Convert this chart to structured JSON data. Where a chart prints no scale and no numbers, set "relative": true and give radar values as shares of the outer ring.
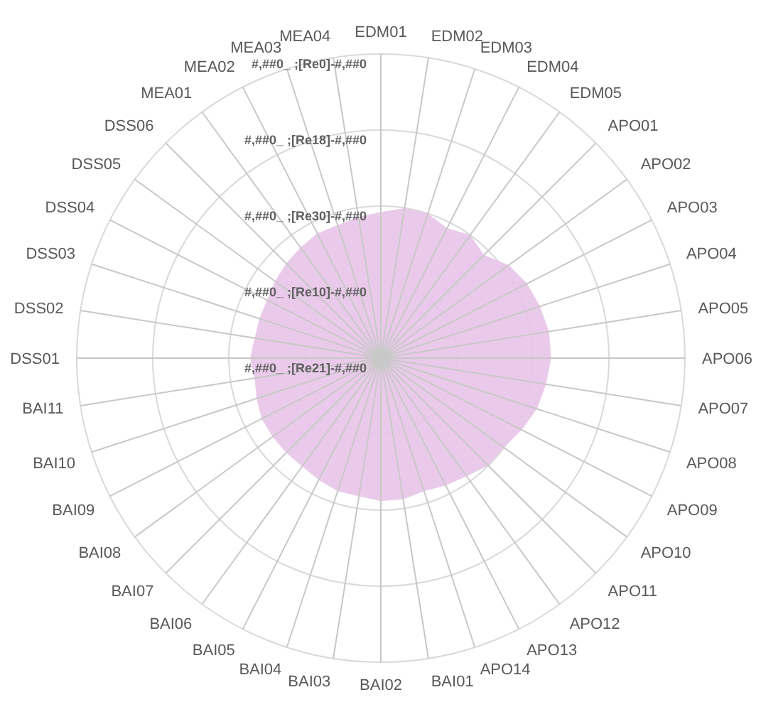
{
  "chart_data": {
    "type": "radar",
    "relative": true,
    "grid": true,
    "categories": [
      "EDM01",
      "EDM02",
      "EDM03",
      "EDM04",
      "EDM05",
      "APO01",
      "APO02",
      "APO03",
      "APO04",
      "APO05",
      "APO06",
      "APO07",
      "APO08",
      "APO09",
      "APO10",
      "APO11",
      "APO12",
      "APO13",
      "APO14",
      "BAI01",
      "BAI02",
      "BAI03",
      "BAI04",
      "BAI05",
      "BAI06",
      "BAI07",
      "BAI08",
      "BAI09",
      "BAI10",
      "BAI11",
      "DSS01",
      "DSS02",
      "DSS03",
      "DSS04",
      "DSS05",
      "DSS06",
      "MEA01",
      "MEA02",
      "MEA03",
      "MEA04"
    ],
    "series": [
      {
        "color": "#e8c4e8",
        "values": [
          0.48,
          0.5,
          0.5,
          0.48,
          0.5,
          0.48,
          0.52,
          0.54,
          0.55,
          0.56,
          0.56,
          0.55,
          0.54,
          0.52,
          0.5,
          0.5,
          0.48,
          0.47,
          0.46,
          0.47,
          0.47,
          0.46,
          0.46,
          0.45,
          0.44,
          0.44,
          0.44,
          0.44,
          0.43,
          0.42,
          0.43,
          0.42,
          0.42,
          0.42,
          0.43,
          0.44,
          0.45,
          0.46,
          0.46,
          0.47
        ]
      }
    ],
    "annotations": [
      "#,##0_ ;[Re21]-#,##0",
      "#,##0_ ;[Re10]-#,##0",
      "#,##0_ ;[Re30]-#,##0",
      "#,##0_ ;[Re18]-#,##0",
      "#,##0_ ;[Re0]-#,##0"
    ]
  }
}
